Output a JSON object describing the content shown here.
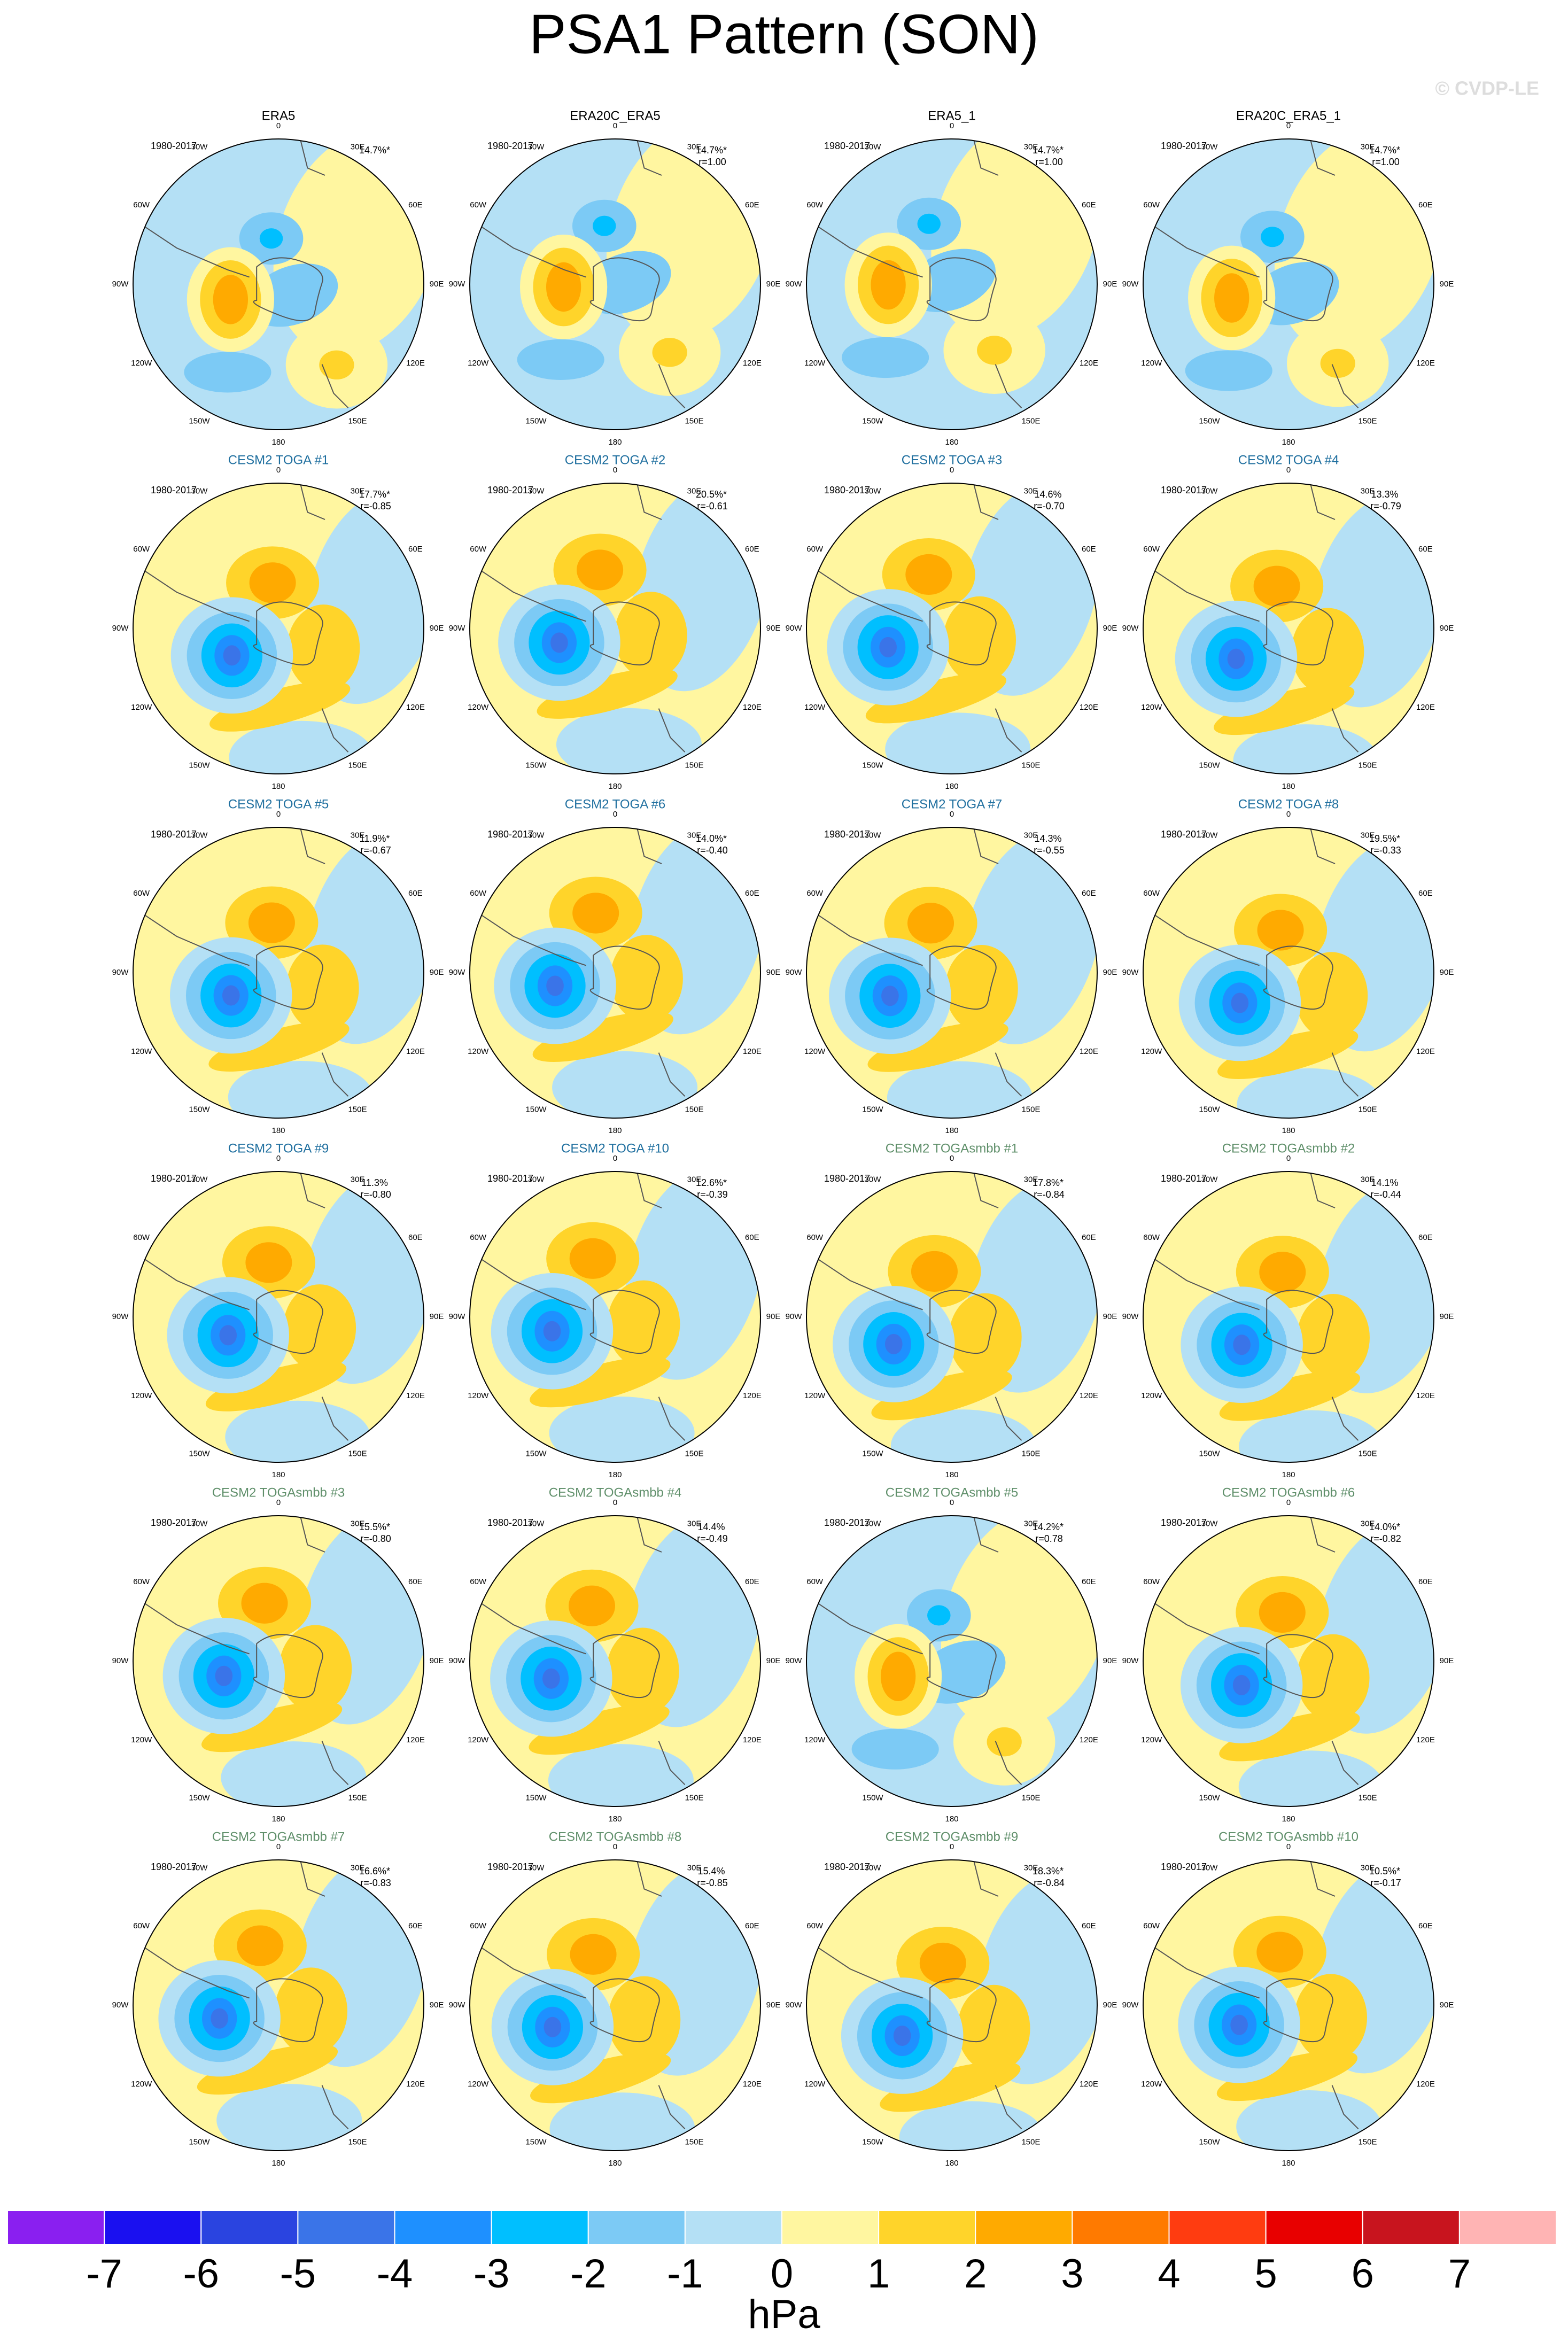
{
  "chart_data": {
    "type": "polar-contour",
    "title": "PSA1 Pattern (SON)",
    "watermark": "© CVDP-LE",
    "lon_labels": [
      "0",
      "30E",
      "60E",
      "90E",
      "120E",
      "150E",
      "180",
      "150W",
      "120W",
      "90W",
      "60W",
      "30W"
    ],
    "panels": [
      {
        "title": "ERA5",
        "period": "1980-2017",
        "pct": "14.7%*",
        "color": "#000000"
      },
      {
        "title": "ERA20C_ERA5",
        "period": "1980-2017",
        "pct": "14.7%*",
        "r": "r=1.00",
        "color": "#000000"
      },
      {
        "title": "ERA5_1",
        "period": "1980-2017",
        "pct": "14.7%*",
        "r": "r=1.00",
        "color": "#000000"
      },
      {
        "title": "ERA20C_ERA5_1",
        "period": "1980-2017",
        "pct": "14.7%*",
        "r": "r=1.00",
        "color": "#000000"
      },
      {
        "title": "CESM2 TOGA #1",
        "period": "1980-2017",
        "pct": "17.7%*",
        "r": "r=-0.85",
        "color": "#1f6f9f"
      },
      {
        "title": "CESM2 TOGA #2",
        "period": "1980-2017",
        "pct": "20.5%*",
        "r": "r=-0.61",
        "color": "#1f6f9f"
      },
      {
        "title": "CESM2 TOGA #3",
        "period": "1980-2017",
        "pct": "14.6%",
        "r": "r=-0.70",
        "color": "#1f6f9f"
      },
      {
        "title": "CESM2 TOGA #4",
        "period": "1980-2017",
        "pct": "13.3%",
        "r": "r=-0.79",
        "color": "#1f6f9f"
      },
      {
        "title": "CESM2 TOGA #5",
        "period": "1980-2017",
        "pct": "11.9%*",
        "r": "r=-0.67",
        "color": "#1f6f9f"
      },
      {
        "title": "CESM2 TOGA #6",
        "period": "1980-2017",
        "pct": "14.0%*",
        "r": "r=-0.40",
        "color": "#1f6f9f"
      },
      {
        "title": "CESM2 TOGA #7",
        "period": "1980-2017",
        "pct": "14.3%",
        "r": "r=-0.55",
        "color": "#1f6f9f"
      },
      {
        "title": "CESM2 TOGA #8",
        "period": "1980-2017",
        "pct": "19.5%*",
        "r": "r=-0.33",
        "color": "#1f6f9f"
      },
      {
        "title": "CESM2 TOGA #9",
        "period": "1980-2017",
        "pct": "11.3%",
        "r": "r=-0.80",
        "color": "#1f6f9f"
      },
      {
        "title": "CESM2 TOGA #10",
        "period": "1980-2017",
        "pct": "12.6%*",
        "r": "r=-0.39",
        "color": "#1f6f9f"
      },
      {
        "title": "CESM2 TOGAsmbb #1",
        "period": "1980-2017",
        "pct": "17.8%*",
        "r": "r=-0.84",
        "color": "#5f8f6a"
      },
      {
        "title": "CESM2 TOGAsmbb #2",
        "period": "1980-2017",
        "pct": "14.1%",
        "r": "r=-0.44",
        "color": "#5f8f6a"
      },
      {
        "title": "CESM2 TOGAsmbb #3",
        "period": "1980-2017",
        "pct": "15.5%*",
        "r": "r=-0.80",
        "color": "#5f8f6a"
      },
      {
        "title": "CESM2 TOGAsmbb #4",
        "period": "1980-2017",
        "pct": "14.4%",
        "r": "r=-0.49",
        "color": "#5f8f6a"
      },
      {
        "title": "CESM2 TOGAsmbb #5",
        "period": "1980-2017",
        "pct": "14.2%*",
        "r": "r=0.78",
        "color": "#5f8f6a"
      },
      {
        "title": "CESM2 TOGAsmbb #6",
        "period": "1980-2017",
        "pct": "14.0%*",
        "r": "r=-0.82",
        "color": "#5f8f6a"
      },
      {
        "title": "CESM2 TOGAsmbb #7",
        "period": "1980-2017",
        "pct": "16.6%*",
        "r": "r=-0.83",
        "color": "#5f8f6a"
      },
      {
        "title": "CESM2 TOGAsmbb #8",
        "period": "1980-2017",
        "pct": "15.4%",
        "r": "r=-0.85",
        "color": "#5f8f6a"
      },
      {
        "title": "CESM2 TOGAsmbb #9",
        "period": "1980-2017",
        "pct": "18.3%*",
        "r": "r=-0.84",
        "color": "#5f8f6a"
      },
      {
        "title": "CESM2 TOGAsmbb #10",
        "period": "1980-2017",
        "pct": "10.5%*",
        "r": "r=-0.17",
        "color": "#5f8f6a"
      }
    ],
    "colorbar": {
      "levels": [
        -7,
        -6,
        -5,
        -4,
        -3,
        -2,
        -1,
        0,
        1,
        2,
        3,
        4,
        5,
        6,
        7
      ],
      "colors": [
        "#8a1ff0",
        "#1a10f0",
        "#2a44e0",
        "#3a74e8",
        "#1e90ff",
        "#00bfff",
        "#7ccaf5",
        "#b4e0f5",
        "#fff6a0",
        "#ffd42a",
        "#ffaa00",
        "#ff7a00",
        "#ff3c10",
        "#e80000",
        "#c8141e",
        "#ffb4b4"
      ],
      "label": "hPa"
    }
  }
}
